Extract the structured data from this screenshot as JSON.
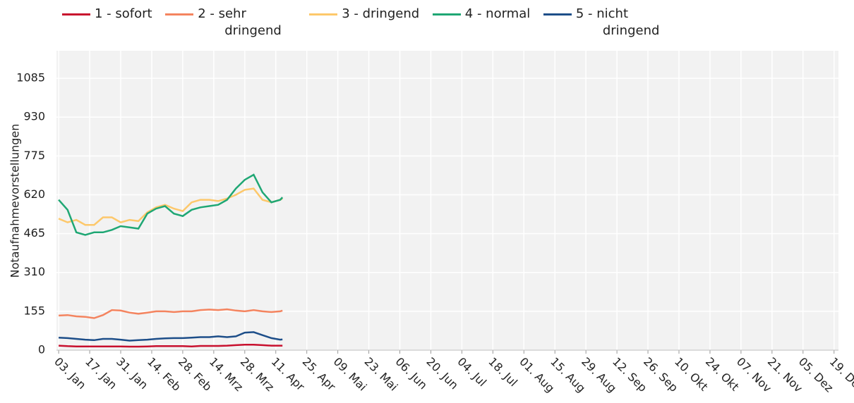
{
  "chart_data": {
    "type": "line",
    "y_label": "Notaufnahmevorstellungen",
    "x": [
      "03. Jan",
      "07. Jan",
      "11. Jan",
      "15. Jan",
      "19. Jan",
      "23. Jan",
      "27. Jan",
      "31. Jan",
      "04. Feb",
      "08. Feb",
      "12. Feb",
      "16. Feb",
      "20. Feb",
      "24. Feb",
      "28. Feb",
      "04. Mrz",
      "08. Mrz",
      "12. Mrz",
      "16. Mrz",
      "20. Mrz",
      "24. Mrz",
      "28. Mrz",
      "01. Apr",
      "05. Apr",
      "09. Apr",
      "13. Apr",
      "14. Apr"
    ],
    "xlim": [
      "02. Jan",
      "21. Dez"
    ],
    "xticks": [
      "03. Jan",
      "17. Jan",
      "31. Jan",
      "14. Feb",
      "28. Feb",
      "14. Mrz",
      "28. Mrz",
      "11. Apr",
      "25. Apr",
      "09. Mai",
      "23. Mai",
      "06. Jun",
      "20. Jun",
      "04. Jul",
      "18. Jul",
      "01. Aug",
      "15. Aug",
      "29. Aug",
      "12. Sep",
      "26. Sep",
      "10. Okt",
      "24. Okt",
      "07. Nov",
      "21. Nov",
      "05. Dez",
      "19. Dez"
    ],
    "ylim": [
      0,
      1195
    ],
    "yticks": [
      0,
      155,
      310,
      465,
      620,
      775,
      930,
      1085
    ],
    "grid": true,
    "series": [
      {
        "name": "1 - sofort",
        "color": "#c8102e",
        "values": [
          18,
          16,
          15,
          15,
          15,
          15,
          15,
          15,
          14,
          14,
          15,
          16,
          16,
          16,
          16,
          15,
          17,
          17,
          17,
          18,
          20,
          22,
          22,
          20,
          18,
          18,
          18
        ]
      },
      {
        "name": "2 - sehr dringend",
        "color": "#f4845f",
        "values": [
          138,
          140,
          135,
          133,
          128,
          140,
          160,
          158,
          150,
          145,
          150,
          155,
          155,
          152,
          155,
          155,
          160,
          162,
          160,
          163,
          158,
          155,
          160,
          155,
          152,
          155,
          158
        ]
      },
      {
        "name": "3 - dringend",
        "color": "#fdc86b",
        "values": [
          525,
          510,
          520,
          500,
          500,
          530,
          530,
          510,
          520,
          515,
          550,
          570,
          580,
          565,
          555,
          590,
          600,
          600,
          595,
          605,
          620,
          640,
          645,
          600,
          590,
          600,
          605
        ]
      },
      {
        "name": "4 - normal",
        "color": "#1fa774",
        "values": [
          600,
          560,
          470,
          460,
          470,
          470,
          480,
          495,
          490,
          485,
          545,
          565,
          575,
          545,
          535,
          560,
          570,
          575,
          580,
          600,
          645,
          680,
          700,
          630,
          590,
          600,
          610
        ]
      },
      {
        "name": "5 - nicht dringend",
        "color": "#1d4e89",
        "values": [
          50,
          48,
          45,
          42,
          40,
          45,
          45,
          42,
          38,
          40,
          42,
          45,
          47,
          48,
          48,
          50,
          52,
          52,
          55,
          52,
          55,
          70,
          72,
          60,
          48,
          42,
          43
        ]
      }
    ]
  }
}
